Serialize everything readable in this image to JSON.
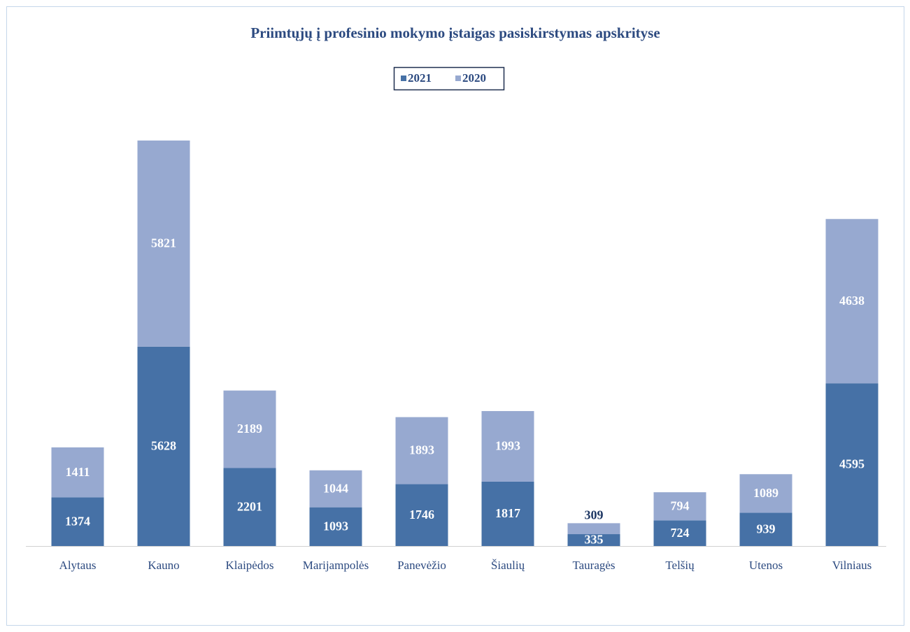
{
  "chart_data": {
    "type": "stacked_bar",
    "title": "Priimtųjų į profesinio mokymo įstaigas pasiskirstymas apskrityse",
    "categories": [
      "Alytaus",
      "Kauno",
      "Klaipėdos",
      "Marijampolės",
      "Panevėžio",
      "Šiaulių",
      "Tauragės",
      "Telšių",
      "Utenos",
      "Vilniaus"
    ],
    "series": [
      {
        "name": "2021",
        "color": "#4671a6",
        "values": [
          1374,
          5628,
          2201,
          1093,
          1746,
          1817,
          335,
          724,
          939,
          4595
        ]
      },
      {
        "name": "2020",
        "color": "#97a9d0",
        "values": [
          1411,
          5821,
          2189,
          1044,
          1893,
          1993,
          309,
          794,
          1089,
          4638
        ]
      }
    ],
    "legend": "top"
  }
}
